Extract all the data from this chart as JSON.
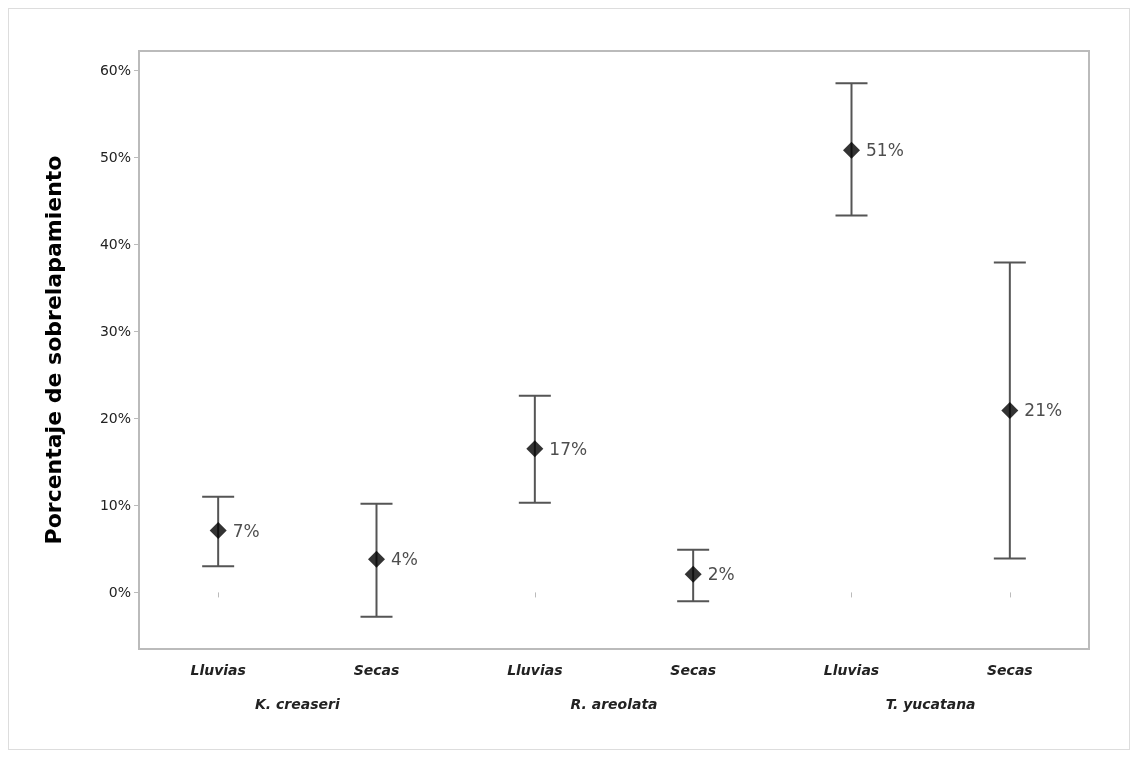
{
  "chart_data": {
    "type": "scatter",
    "ylabel": "Porcentaje de sobrelapamiento",
    "categories": [
      "Lluvias",
      "Secas",
      "Lluvias",
      "Secas",
      "Lluvias",
      "Secas"
    ],
    "values": [
      7.1,
      3.8,
      16.5,
      2.1,
      50.8,
      20.9
    ],
    "errors": [
      [
        3.0,
        11.0
      ],
      [
        -2.8,
        10.2
      ],
      [
        10.3,
        22.6
      ],
      [
        -1.0,
        4.9
      ],
      [
        43.3,
        58.5
      ],
      [
        3.9,
        37.9
      ]
    ],
    "value_labels": [
      "7%",
      "4%",
      "17%",
      "2%",
      "51%",
      "21%"
    ],
    "color": "#000000",
    "marker": "diamond",
    "grid": false,
    "ylim": [
      -6.5,
      62.2
    ],
    "yticks": [
      {
        "value": 0,
        "label": "0%"
      },
      {
        "value": 10,
        "label": "10%"
      },
      {
        "value": 20,
        "label": "20%"
      },
      {
        "value": 30,
        "label": "30%"
      },
      {
        "value": 40,
        "label": "40%"
      },
      {
        "value": 50,
        "label": "50%"
      },
      {
        "value": 60,
        "label": "60%"
      }
    ],
    "annotations": [
      "K. creaseri",
      "R. areolata",
      "T. yucatana"
    ]
  }
}
